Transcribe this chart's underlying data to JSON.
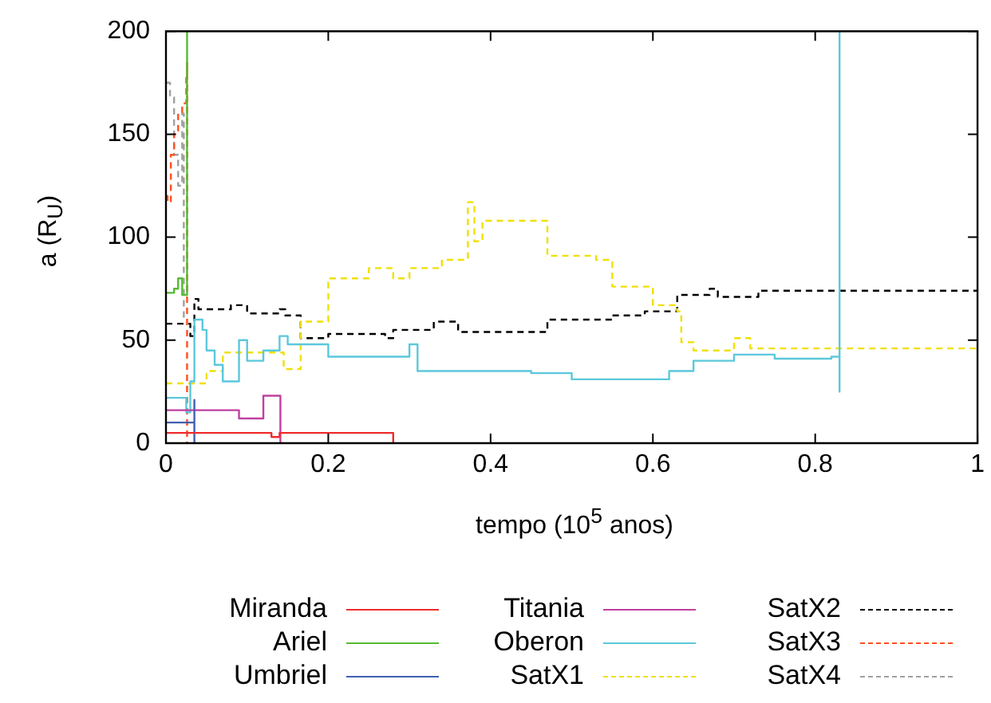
{
  "chart_data": {
    "type": "step",
    "xlabel": "tempo (10$^{5}$ anos)",
    "ylabel": "a (R$_{U}$)",
    "xlim": [
      0,
      1
    ],
    "ylim": [
      0,
      200
    ],
    "xticks": [
      0,
      0.2,
      0.4,
      0.6,
      0.8,
      1
    ],
    "yticks": [
      0,
      50,
      100,
      150,
      200
    ],
    "grid": false,
    "legend": "bottom",
    "marker": "none",
    "series": [
      {
        "name": "Miranda",
        "color": "#ee2c2c",
        "line_style": "solid",
        "x": [
          0,
          0.12,
          0.13,
          0.14,
          0.28,
          0.28
        ],
        "values": [
          5,
          5,
          3,
          5,
          5,
          0
        ]
      },
      {
        "name": "Ariel",
        "color": "#55bb33",
        "line_style": "solid",
        "x": [
          0,
          0.01,
          0.015,
          0.02,
          0.026,
          0.026
        ],
        "values": [
          73,
          75,
          80,
          72,
          72,
          200
        ]
      },
      {
        "name": "Umbriel",
        "color": "#4060b0",
        "line_style": "solid",
        "x": [
          0,
          0.03,
          0.035,
          0.035
        ],
        "values": [
          10,
          10,
          21,
          0
        ]
      },
      {
        "name": "Titania",
        "color": "#c040a0",
        "line_style": "solid",
        "x": [
          0,
          0.03,
          0.09,
          0.12,
          0.141,
          0.141
        ],
        "values": [
          16,
          16,
          12,
          23,
          22,
          0
        ]
      },
      {
        "name": "Oberon",
        "color": "#5bc8dc",
        "line_style": "solid",
        "x": [
          0,
          0.02,
          0.025,
          0.03,
          0.035,
          0.045,
          0.05,
          0.06,
          0.07,
          0.09,
          0.1,
          0.12,
          0.14,
          0.15,
          0.2,
          0.27,
          0.3,
          0.31,
          0.45,
          0.5,
          0.6,
          0.62,
          0.65,
          0.7,
          0.75,
          0.82,
          0.83,
          0.83
        ],
        "values": [
          22,
          22,
          15,
          30,
          60,
          55,
          45,
          38,
          30,
          50,
          40,
          45,
          52,
          48,
          42,
          42,
          48,
          35,
          34,
          31,
          31,
          35,
          40,
          43,
          41,
          42,
          25,
          200
        ]
      },
      {
        "name": "SatX1",
        "color": "#f0e000",
        "line_style": "dashed",
        "x": [
          0,
          0.03,
          0.05,
          0.07,
          0.141,
          0.145,
          0.166,
          0.2,
          0.25,
          0.28,
          0.3,
          0.34,
          0.36,
          0.372,
          0.38,
          0.39,
          0.47,
          0.53,
          0.55,
          0.6,
          0.63,
          0.635,
          0.65,
          0.7,
          0.72,
          1
        ],
        "values": [
          29,
          29,
          35,
          44,
          44,
          36,
          59,
          80,
          85,
          80,
          85,
          89,
          89,
          117,
          98,
          108,
          91,
          89,
          76,
          67,
          64,
          49,
          45,
          51,
          46,
          45
        ]
      },
      {
        "name": "SatX2",
        "color": "#000000",
        "line_style": "dashed",
        "x": [
          0,
          0.03,
          0.035,
          0.04,
          0.08,
          0.1,
          0.14,
          0.147,
          0.166,
          0.2,
          0.27,
          0.28,
          0.33,
          0.36,
          0.47,
          0.55,
          0.59,
          0.63,
          0.67,
          0.68,
          0.73,
          1
        ],
        "values": [
          58,
          52,
          70,
          65,
          67,
          63,
          65,
          62,
          51,
          53,
          51,
          55,
          59,
          54,
          60,
          62,
          64,
          72,
          75,
          71,
          74,
          74
        ]
      },
      {
        "name": "SatX3",
        "color": "#ff5020",
        "line_style": "dashed",
        "x": [
          0,
          0.002,
          0.006,
          0.01,
          0.015,
          0.02,
          0.025,
          0.026,
          0.026
        ],
        "values": [
          120,
          117,
          140,
          150,
          160,
          165,
          180,
          185,
          0
        ]
      },
      {
        "name": "SatX4",
        "color": "#a0a0a0",
        "line_style": "dashed",
        "x": [
          0,
          0.005,
          0.01,
          0.015,
          0.02,
          0.022
        ],
        "values": [
          175,
          168,
          140,
          125,
          160,
          60
        ]
      }
    ]
  }
}
